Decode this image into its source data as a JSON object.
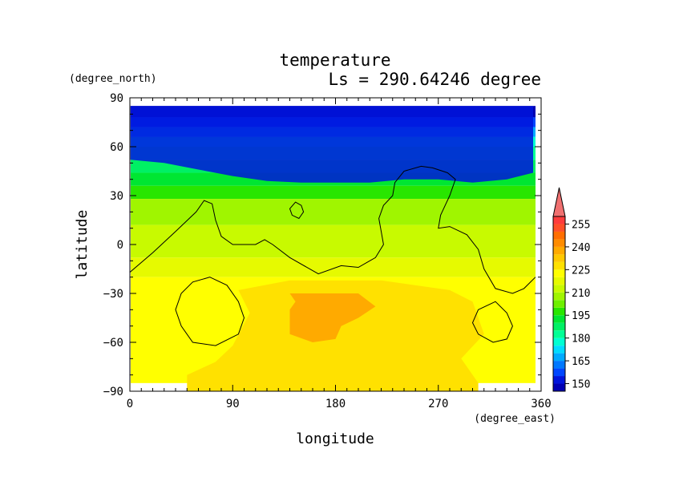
{
  "chart_data": {
    "type": "heatmap",
    "title": "temperature",
    "subtitle": "Ls = 290.64246 degree",
    "xlabel": "longitude",
    "ylabel": "latitude",
    "x_unit": "(degree_east)",
    "y_unit": "(degree_north)",
    "xlim": [
      0,
      360
    ],
    "ylim": [
      -90,
      90
    ],
    "x_ticks": [
      0,
      90,
      180,
      270,
      360
    ],
    "y_ticks": [
      90,
      60,
      30,
      0,
      -30,
      -60,
      -90
    ],
    "x_tick_labels": [
      "0",
      "90",
      "180",
      "270",
      "360"
    ],
    "y_tick_labels": [
      "90",
      "60",
      "30",
      "0",
      "−30",
      "−60",
      "−90"
    ],
    "colorbar": {
      "levels": [
        145,
        150,
        155,
        160,
        165,
        170,
        175,
        180,
        185,
        190,
        195,
        200,
        205,
        210,
        215,
        220,
        225,
        230,
        235,
        240,
        245,
        250,
        255,
        260
      ],
      "tick_values": [
        150,
        165,
        180,
        195,
        210,
        225,
        240,
        255
      ],
      "tick_labels": [
        "150",
        "165",
        "180",
        "195",
        "210",
        "225",
        "240",
        "255"
      ],
      "colors": [
        "#0000b4",
        "#0014dc",
        "#0046ff",
        "#0078ff",
        "#00aaff",
        "#00dcff",
        "#00ffd2",
        "#00ff96",
        "#00f064",
        "#00e632",
        "#28e600",
        "#6ef000",
        "#a0f500",
        "#c8fa00",
        "#e6fa00",
        "#ffff00",
        "#ffe100",
        "#ffc800",
        "#ffaa00",
        "#ff8c00",
        "#ff6e00",
        "#ff5028",
        "#ff3c3c",
        "#f08080"
      ],
      "over_color": "#f07070"
    },
    "bands": [
      {
        "lat_max": 85,
        "lat_min": 78,
        "temperature": 145
      },
      {
        "lat_max": 78,
        "lat_min": 72,
        "temperature": 155
      },
      {
        "lat_max": 72,
        "lat_min": 66,
        "temperature": 165
      },
      {
        "lat_max": 66,
        "lat_min": 60,
        "temperature": 175
      },
      {
        "lat_max": 60,
        "lat_min": 52,
        "temperature": 182
      },
      {
        "lat_max": 52,
        "lat_min": 44,
        "temperature": 188
      },
      {
        "lat_max": 44,
        "lat_min": 36,
        "temperature": 193
      },
      {
        "lat_max": 36,
        "lat_min": 28,
        "temperature": 198
      },
      {
        "lat_max": 28,
        "lat_min": 12,
        "temperature": 205
      },
      {
        "lat_max": 12,
        "lat_min": -8,
        "temperature": 212
      },
      {
        "lat_max": -8,
        "lat_min": -20,
        "temperature": 218
      },
      {
        "lat_max": -20,
        "lat_min": -85,
        "temperature": 222
      }
    ],
    "polar_cap_edge": [
      [
        0,
        52
      ],
      [
        30,
        50
      ],
      [
        60,
        46
      ],
      [
        90,
        42
      ],
      [
        120,
        39
      ],
      [
        150,
        38
      ],
      [
        180,
        38
      ],
      [
        210,
        38
      ],
      [
        240,
        40
      ],
      [
        270,
        40
      ],
      [
        300,
        38
      ],
      [
        330,
        40
      ],
      [
        360,
        44
      ]
    ],
    "warm_regions": [
      {
        "temperature": 228,
        "polygon": [
          [
            50,
            -90
          ],
          [
            50,
            -80
          ],
          [
            75,
            -72
          ],
          [
            90,
            -62
          ],
          [
            105,
            -42
          ],
          [
            95,
            -28
          ],
          [
            140,
            -22
          ],
          [
            220,
            -22
          ],
          [
            280,
            -28
          ],
          [
            300,
            -35
          ],
          [
            310,
            -55
          ],
          [
            290,
            -70
          ],
          [
            305,
            -85
          ],
          [
            305,
            -90
          ]
        ]
      },
      {
        "temperature": 238,
        "polygon": [
          [
            140,
            -30
          ],
          [
            200,
            -30
          ],
          [
            215,
            -38
          ],
          [
            200,
            -45
          ],
          [
            185,
            -50
          ],
          [
            180,
            -58
          ],
          [
            160,
            -60
          ],
          [
            140,
            -55
          ],
          [
            140,
            -40
          ],
          [
            145,
            -35
          ]
        ]
      }
    ],
    "contours": [
      [
        [
          0,
          -17
        ],
        [
          20,
          -5
        ],
        [
          40,
          8
        ],
        [
          58,
          20
        ],
        [
          65,
          27
        ],
        [
          72,
          25
        ],
        [
          75,
          15
        ],
        [
          80,
          5
        ],
        [
          90,
          0
        ],
        [
          110,
          0
        ],
        [
          118,
          3
        ],
        [
          125,
          0
        ],
        [
          140,
          -8
        ],
        [
          165,
          -18
        ],
        [
          185,
          -13
        ],
        [
          200,
          -14
        ],
        [
          210,
          -10
        ],
        [
          215,
          -8
        ],
        [
          222,
          0
        ],
        [
          220,
          8
        ],
        [
          218,
          16
        ],
        [
          222,
          24
        ],
        [
          230,
          30
        ],
        [
          232,
          38
        ],
        [
          240,
          45
        ],
        [
          255,
          48
        ],
        [
          265,
          47
        ],
        [
          278,
          44
        ],
        [
          285,
          40
        ],
        [
          280,
          30
        ],
        [
          272,
          18
        ],
        [
          270,
          10
        ],
        [
          280,
          11
        ],
        [
          295,
          6
        ],
        [
          305,
          -3
        ],
        [
          310,
          -15
        ],
        [
          320,
          -27
        ],
        [
          335,
          -30
        ],
        [
          345,
          -27
        ],
        [
          355,
          -20
        ]
      ],
      [
        [
          70,
          -20
        ],
        [
          85,
          -25
        ],
        [
          95,
          -35
        ],
        [
          100,
          -45
        ],
        [
          95,
          -55
        ],
        [
          75,
          -62
        ],
        [
          55,
          -60
        ],
        [
          45,
          -50
        ],
        [
          40,
          -40
        ],
        [
          45,
          -30
        ],
        [
          55,
          -23
        ]
      ],
      [
        [
          305,
          -40
        ],
        [
          320,
          -35
        ],
        [
          330,
          -42
        ],
        [
          335,
          -50
        ],
        [
          330,
          -58
        ],
        [
          318,
          -60
        ],
        [
          305,
          -55
        ],
        [
          300,
          -48
        ]
      ],
      [
        [
          140,
          22
        ],
        [
          145,
          26
        ],
        [
          150,
          24
        ],
        [
          152,
          20
        ],
        [
          148,
          16
        ],
        [
          142,
          18
        ]
      ]
    ]
  }
}
